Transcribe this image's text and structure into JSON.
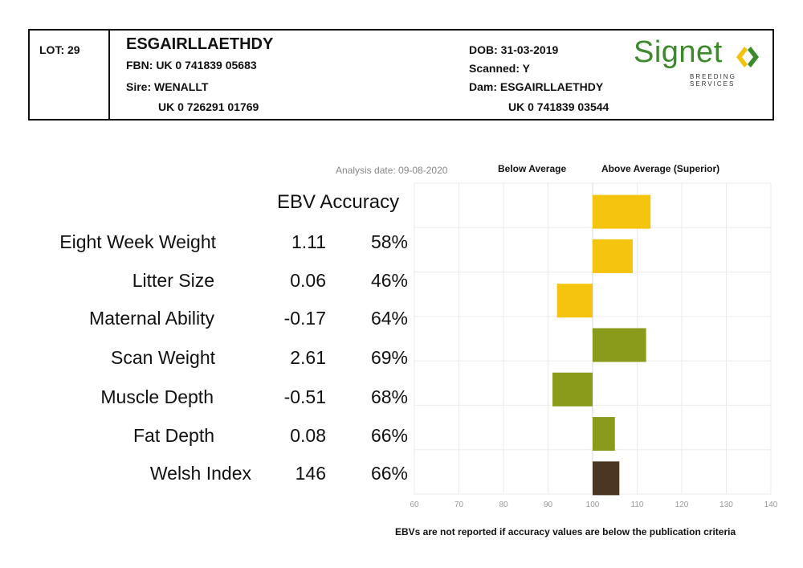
{
  "header": {
    "lot": "LOT: 29",
    "animal_name": "ESGAIRLLAETHDY",
    "fbn": "FBN: UK 0 741839 05683",
    "sire": "Sire: WENALLT",
    "sire_id": "UK 0 726291 01769",
    "dob": "DOB: 31-03-2019",
    "scanned": "Scanned: Y",
    "dam": "Dam: ESGAIRLLAETHDY",
    "dam_id": "UK 0 741839 03544",
    "logo_text": "Signet",
    "logo_subtext": "BREEDING SERVICES",
    "logo_colors": {
      "green": "#3c8a2c",
      "yellow": "#f2c20a"
    }
  },
  "analysis_date": "Analysis date: 09-08-2020",
  "legend": {
    "below": "Below Average",
    "above": "Above Average (Superior)"
  },
  "column_header": "EBV Accuracy",
  "traits": [
    {
      "name": "Eight Week Weight",
      "ebv": "1.11",
      "accuracy": "58%"
    },
    {
      "name": "Litter Size",
      "ebv": "0.06",
      "accuracy": "46%"
    },
    {
      "name": "Maternal Ability",
      "ebv": "-0.17",
      "accuracy": "64%"
    },
    {
      "name": "Scan Weight",
      "ebv": "2.61",
      "accuracy": "69%"
    },
    {
      "name": "Muscle Depth",
      "ebv": "-0.51",
      "accuracy": "68%"
    },
    {
      "name": "Fat Depth",
      "ebv": "0.08",
      "accuracy": "66%"
    },
    {
      "name": "Welsh Index",
      "ebv": "146",
      "accuracy": "66%"
    }
  ],
  "chart_data": {
    "type": "bar",
    "orientation": "horizontal",
    "baseline": 100,
    "xlim": [
      60,
      140
    ],
    "xticks": [
      "60",
      "70",
      "80",
      "90",
      "100",
      "110",
      "120",
      "130",
      "140"
    ],
    "grid": true,
    "categories": [
      "Eight Week Weight",
      "Litter Size",
      "Maternal Ability",
      "Scan Weight",
      "Muscle Depth",
      "Fat Depth",
      "Welsh Index"
    ],
    "values": [
      113,
      109,
      92,
      112,
      91,
      105,
      106
    ],
    "colors": [
      "#f5c40f",
      "#f5c40f",
      "#f5c40f",
      "#8a9a1b",
      "#8a9a1b",
      "#8a9a1b",
      "#4a3623"
    ]
  },
  "footnote": "EBVs are not reported if accuracy values are below the publication criteria"
}
